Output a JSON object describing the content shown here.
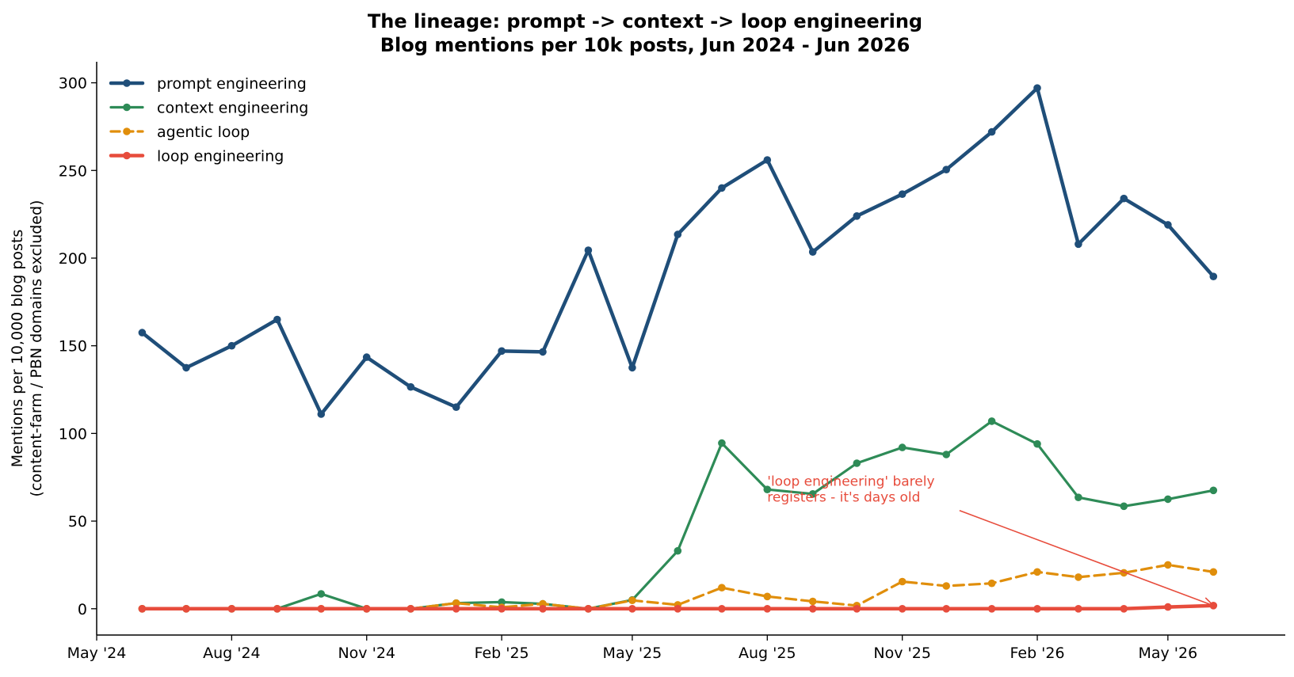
{
  "chart_data": {
    "type": "line",
    "title": "The lineage: prompt -> context -> loop engineering",
    "subtitle": "Blog mentions per 10k posts, Jun 2024 - Jun 2026",
    "xlabel": "",
    "ylabel": "Mentions per 10,000 blog posts",
    "ylabel_sub": "(content-farm / PBN domains excluded)",
    "x": [
      "2024-06",
      "2024-07",
      "2024-08",
      "2024-09",
      "2024-10",
      "2024-11",
      "2024-12",
      "2025-01",
      "2025-02",
      "2025-03",
      "2025-04",
      "2025-05",
      "2025-06",
      "2025-07",
      "2025-08",
      "2025-09",
      "2025-10",
      "2025-11",
      "2025-12",
      "2026-01",
      "2026-02",
      "2026-03",
      "2026-04",
      "2026-05",
      "2026-06"
    ],
    "xlim": [
      "2024-05-01",
      "2026-07-20"
    ],
    "ylim": [
      -15,
      312
    ],
    "x_ticks": [
      {
        "date": "2024-05",
        "label": "May '24"
      },
      {
        "date": "2024-08",
        "label": "Aug '24"
      },
      {
        "date": "2024-11",
        "label": "Nov '24"
      },
      {
        "date": "2025-02",
        "label": "Feb '25"
      },
      {
        "date": "2025-05",
        "label": "May '25"
      },
      {
        "date": "2025-08",
        "label": "Aug '25"
      },
      {
        "date": "2025-11",
        "label": "Nov '25"
      },
      {
        "date": "2026-02",
        "label": "Feb '26"
      },
      {
        "date": "2026-05",
        "label": "May '26"
      }
    ],
    "y_ticks": [
      0,
      50,
      100,
      150,
      200,
      250,
      300
    ],
    "grid": false,
    "legend_position": "top-left",
    "series": [
      {
        "name": "prompt engineering",
        "color": "#1f4e79",
        "style": "solid",
        "width": 4.5,
        "values": [
          157.5,
          137.5,
          150,
          165,
          111,
          143.5,
          126.5,
          115,
          147,
          146.5,
          204.5,
          137.5,
          213.5,
          240,
          256,
          203.5,
          224,
          236.5,
          250.5,
          272,
          297,
          208,
          234,
          219,
          189.5
        ]
      },
      {
        "name": "context engineering",
        "color": "#2e8b57",
        "style": "solid",
        "width": 3.2,
        "values": [
          0,
          0,
          0,
          0,
          8.5,
          0,
          0,
          3.2,
          3.8,
          2.8,
          0,
          5,
          33,
          94.5,
          68,
          65.5,
          83,
          92,
          88,
          107,
          94,
          63.5,
          58.5,
          62.5,
          67.5
        ]
      },
      {
        "name": "agentic loop",
        "color": "#e08e0b",
        "style": "dashed",
        "width": 3.2,
        "values": [
          0,
          0,
          0,
          0,
          0,
          0,
          0,
          3.2,
          0.8,
          2.8,
          0,
          4.8,
          2.2,
          12,
          7,
          4.2,
          1.8,
          15.5,
          13,
          14.5,
          21,
          18,
          20.5,
          25,
          21
        ]
      },
      {
        "name": "loop engineering",
        "color": "#e74c3c",
        "style": "solid",
        "width": 4.5,
        "values": [
          0,
          0,
          0,
          0,
          0,
          0,
          0,
          0,
          0,
          0,
          0,
          0,
          0,
          0,
          0,
          0,
          0,
          0,
          0,
          0,
          0,
          0,
          0,
          1,
          1.8
        ]
      }
    ],
    "annotation": {
      "lines": [
        "'loop engineering' barely",
        "registers - it's days old"
      ],
      "text_at": {
        "date": "2025-08-01",
        "value": 61
      },
      "arrow_from": {
        "date": "2025-12-10",
        "value": 56
      },
      "arrow_to": {
        "date": "2026-06-01",
        "value": 1.8
      },
      "color": "#e74c3c"
    }
  }
}
